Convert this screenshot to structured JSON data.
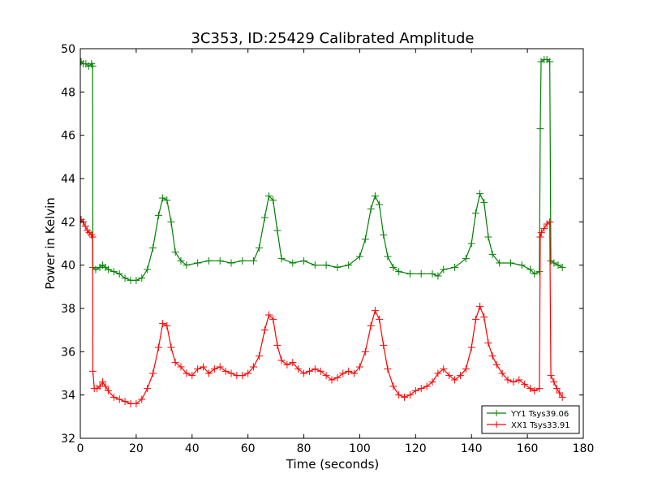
{
  "chart_data": {
    "type": "line",
    "title": "3C353, ID:25429 Calibrated Amplitude",
    "xlabel": "Time (seconds)",
    "ylabel": "Power in Kelvin",
    "xlim": [
      0,
      180
    ],
    "ylim": [
      32,
      50
    ],
    "xticks": [
      "0",
      "20",
      "40",
      "60",
      "80",
      "100",
      "120",
      "140",
      "160",
      "180"
    ],
    "yticks": [
      "32",
      "34",
      "36",
      "38",
      "40",
      "42",
      "44",
      "46",
      "48",
      "50"
    ],
    "grid": false,
    "legend_position": "lower-right",
    "series": [
      {
        "name": "YY1 Tsys39.06",
        "color": "#008000",
        "marker": "plus",
        "points": [
          [
            0.3,
            49.4
          ],
          [
            1.0,
            49.3
          ],
          [
            2.0,
            49.3
          ],
          [
            3.0,
            49.2
          ],
          [
            4.0,
            49.3
          ],
          [
            4.4,
            49.2
          ],
          [
            4.5,
            39.9
          ],
          [
            5.5,
            39.8
          ],
          [
            7.0,
            39.9
          ],
          [
            8.0,
            40.0
          ],
          [
            9.0,
            39.9
          ],
          [
            10.0,
            39.8
          ],
          [
            12.0,
            39.7
          ],
          [
            14.0,
            39.6
          ],
          [
            16.0,
            39.4
          ],
          [
            18.0,
            39.3
          ],
          [
            20.0,
            39.3
          ],
          [
            22.0,
            39.4
          ],
          [
            24.0,
            39.8
          ],
          [
            26.0,
            40.8
          ],
          [
            28.0,
            42.3
          ],
          [
            29.5,
            43.1
          ],
          [
            31.0,
            43.0
          ],
          [
            32.5,
            42.0
          ],
          [
            34.0,
            40.6
          ],
          [
            36.0,
            40.2
          ],
          [
            38.0,
            40.0
          ],
          [
            42.0,
            40.1
          ],
          [
            46.0,
            40.2
          ],
          [
            50.0,
            40.2
          ],
          [
            54.0,
            40.1
          ],
          [
            58.0,
            40.2
          ],
          [
            62.0,
            40.2
          ],
          [
            64.0,
            40.8
          ],
          [
            66.0,
            42.2
          ],
          [
            67.5,
            43.2
          ],
          [
            69.0,
            43.0
          ],
          [
            70.5,
            41.6
          ],
          [
            72.0,
            40.3
          ],
          [
            76.0,
            40.1
          ],
          [
            80.0,
            40.2
          ],
          [
            84.0,
            40.0
          ],
          [
            88.0,
            40.0
          ],
          [
            92.0,
            39.9
          ],
          [
            96.0,
            40.0
          ],
          [
            100.0,
            40.4
          ],
          [
            102.0,
            41.2
          ],
          [
            104.0,
            42.6
          ],
          [
            105.5,
            43.2
          ],
          [
            107.0,
            42.8
          ],
          [
            108.5,
            41.4
          ],
          [
            110.0,
            40.4
          ],
          [
            112.0,
            39.9
          ],
          [
            114.0,
            39.7
          ],
          [
            118.0,
            39.6
          ],
          [
            122.0,
            39.6
          ],
          [
            126.0,
            39.6
          ],
          [
            128.0,
            39.5
          ],
          [
            130.0,
            39.8
          ],
          [
            134.0,
            39.9
          ],
          [
            138.0,
            40.3
          ],
          [
            140.0,
            41.0
          ],
          [
            141.5,
            42.4
          ],
          [
            143.0,
            43.3
          ],
          [
            144.5,
            42.9
          ],
          [
            146.0,
            41.3
          ],
          [
            147.5,
            40.5
          ],
          [
            150.0,
            40.1
          ],
          [
            154.0,
            40.1
          ],
          [
            158.0,
            40.0
          ],
          [
            161.0,
            39.8
          ],
          [
            162.5,
            39.6
          ],
          [
            164.3,
            39.7
          ],
          [
            164.6,
            46.3
          ],
          [
            164.9,
            49.4
          ],
          [
            166.0,
            49.5
          ],
          [
            167.0,
            49.5
          ],
          [
            168.0,
            49.4
          ],
          [
            168.4,
            40.2
          ],
          [
            169.5,
            40.1
          ],
          [
            171.0,
            40.0
          ],
          [
            172.5,
            39.9
          ]
        ]
      },
      {
        "name": "XX1 Tsys33.91",
        "color": "#ff0000",
        "marker": "plus",
        "points": [
          [
            0.3,
            42.1
          ],
          [
            1.0,
            42.0
          ],
          [
            1.8,
            41.8
          ],
          [
            2.5,
            41.6
          ],
          [
            3.2,
            41.5
          ],
          [
            4.0,
            41.4
          ],
          [
            4.4,
            41.3
          ],
          [
            4.5,
            35.1
          ],
          [
            5.0,
            34.3
          ],
          [
            6.0,
            34.3
          ],
          [
            7.0,
            34.4
          ],
          [
            8.0,
            34.6
          ],
          [
            9.0,
            34.4
          ],
          [
            10.0,
            34.2
          ],
          [
            12.0,
            33.9
          ],
          [
            14.0,
            33.8
          ],
          [
            16.0,
            33.7
          ],
          [
            18.0,
            33.6
          ],
          [
            20.0,
            33.6
          ],
          [
            22.0,
            33.8
          ],
          [
            24.0,
            34.3
          ],
          [
            26.0,
            35.0
          ],
          [
            28.0,
            36.2
          ],
          [
            29.5,
            37.3
          ],
          [
            31.0,
            37.2
          ],
          [
            32.5,
            36.2
          ],
          [
            34.0,
            35.5
          ],
          [
            36.0,
            35.3
          ],
          [
            38.0,
            35.0
          ],
          [
            40.0,
            34.9
          ],
          [
            42.0,
            35.2
          ],
          [
            44.0,
            35.3
          ],
          [
            46.0,
            35.0
          ],
          [
            48.0,
            35.2
          ],
          [
            50.0,
            35.3
          ],
          [
            52.0,
            35.1
          ],
          [
            54.0,
            35.0
          ],
          [
            56.0,
            34.9
          ],
          [
            58.0,
            34.9
          ],
          [
            60.0,
            35.0
          ],
          [
            62.0,
            35.3
          ],
          [
            64.0,
            35.8
          ],
          [
            66.0,
            37.0
          ],
          [
            67.5,
            37.7
          ],
          [
            69.0,
            37.5
          ],
          [
            70.5,
            36.3
          ],
          [
            72.0,
            35.6
          ],
          [
            74.0,
            35.4
          ],
          [
            76.0,
            35.5
          ],
          [
            78.0,
            35.2
          ],
          [
            80.0,
            35.0
          ],
          [
            82.0,
            35.1
          ],
          [
            84.0,
            35.2
          ],
          [
            86.0,
            35.1
          ],
          [
            88.0,
            34.9
          ],
          [
            90.0,
            34.7
          ],
          [
            92.0,
            34.8
          ],
          [
            94.0,
            35.0
          ],
          [
            96.0,
            35.1
          ],
          [
            98.0,
            35.0
          ],
          [
            100.0,
            35.3
          ],
          [
            102.0,
            36.0
          ],
          [
            104.0,
            37.2
          ],
          [
            105.5,
            37.9
          ],
          [
            107.0,
            37.5
          ],
          [
            108.5,
            36.3
          ],
          [
            110.0,
            35.2
          ],
          [
            112.0,
            34.4
          ],
          [
            114.0,
            34.0
          ],
          [
            116.0,
            33.9
          ],
          [
            118.0,
            34.0
          ],
          [
            120.0,
            34.2
          ],
          [
            122.0,
            34.3
          ],
          [
            124.0,
            34.4
          ],
          [
            126.0,
            34.6
          ],
          [
            128.0,
            35.0
          ],
          [
            130.0,
            35.2
          ],
          [
            132.0,
            34.9
          ],
          [
            134.0,
            34.7
          ],
          [
            136.0,
            34.9
          ],
          [
            138.0,
            35.2
          ],
          [
            140.0,
            36.2
          ],
          [
            141.5,
            37.5
          ],
          [
            143.0,
            38.1
          ],
          [
            144.5,
            37.6
          ],
          [
            146.0,
            36.4
          ],
          [
            147.5,
            35.8
          ],
          [
            149.0,
            35.4
          ],
          [
            151.0,
            35.0
          ],
          [
            153.0,
            34.7
          ],
          [
            155.0,
            34.6
          ],
          [
            157.0,
            34.7
          ],
          [
            159.0,
            34.5
          ],
          [
            161.0,
            34.3
          ],
          [
            162.5,
            34.2
          ],
          [
            164.3,
            34.3
          ],
          [
            164.6,
            41.3
          ],
          [
            165.0,
            41.5
          ],
          [
            166.0,
            41.7
          ],
          [
            167.0,
            41.9
          ],
          [
            168.0,
            42.0
          ],
          [
            168.4,
            34.9
          ],
          [
            169.5,
            34.6
          ],
          [
            170.5,
            34.3
          ],
          [
            171.5,
            34.1
          ],
          [
            172.5,
            33.9
          ]
        ]
      }
    ]
  }
}
